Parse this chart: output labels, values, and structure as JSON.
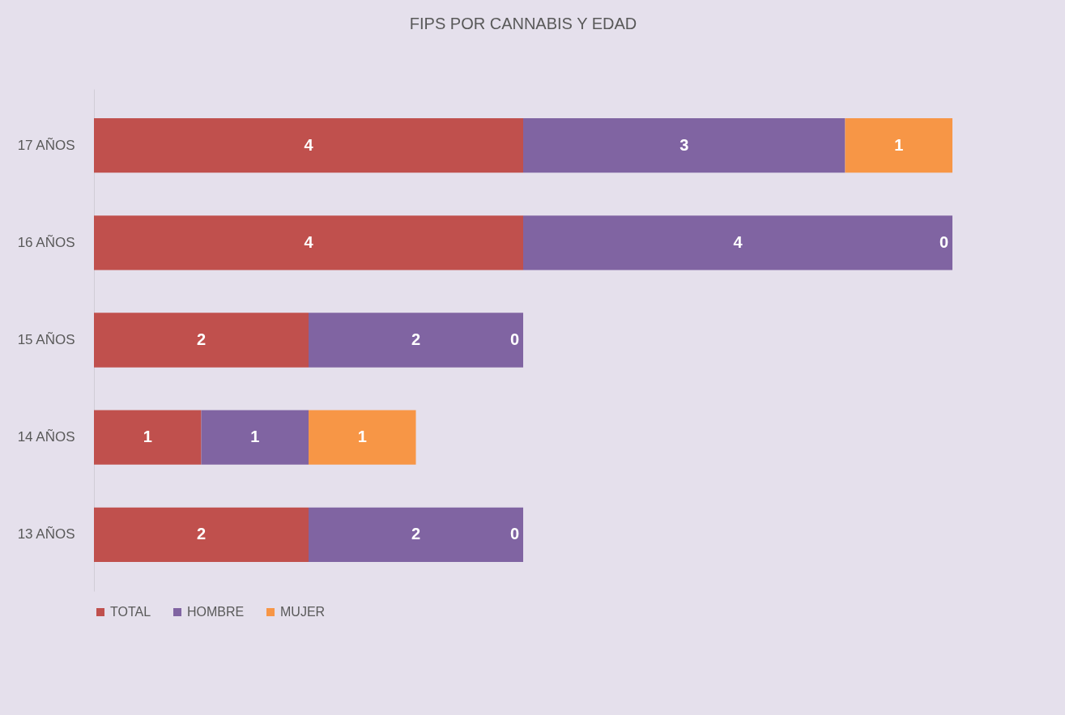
{
  "chart_data": {
    "type": "bar",
    "title": "FIPS POR CANNABIS Y EDAD",
    "orientation": "horizontal",
    "stacked": true,
    "categories": [
      "17 AÑOS",
      "16 AÑOS",
      "15 AÑOS",
      "14 AÑOS",
      "13 AÑOS"
    ],
    "series": [
      {
        "name": "TOTAL",
        "color": "#c0504d",
        "values": [
          4,
          4,
          2,
          1,
          2
        ]
      },
      {
        "name": "HOMBRE",
        "color": "#8064a2",
        "values": [
          3,
          4,
          2,
          1,
          2
        ]
      },
      {
        "name": "MUJER",
        "color": "#f79646",
        "values": [
          1,
          0,
          0,
          1,
          0
        ]
      }
    ],
    "data_labels": true,
    "grid": false,
    "legend": "bottom",
    "tick_labels": "y"
  }
}
